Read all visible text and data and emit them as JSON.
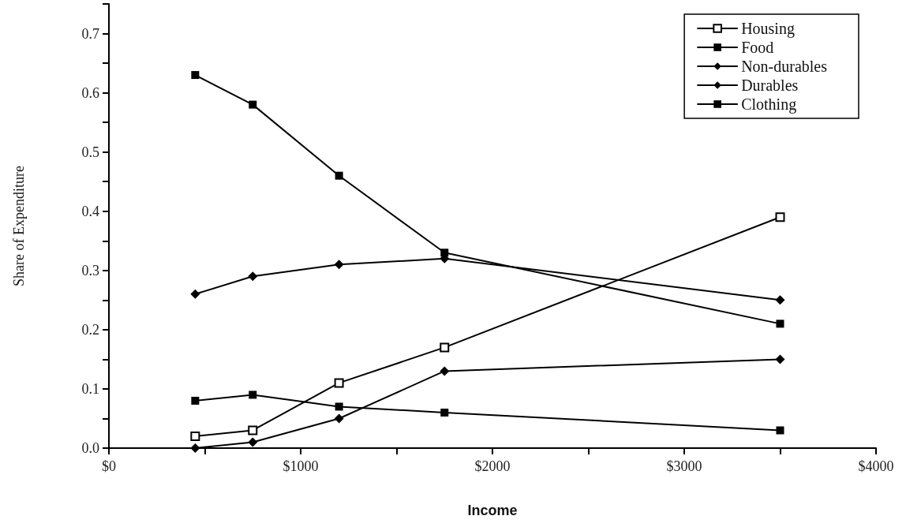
{
  "chart_data": {
    "type": "line",
    "xlabel": "Income",
    "ylabel": "Share of Expenditure",
    "x": [
      450,
      750,
      1200,
      1750,
      3500
    ],
    "series": [
      {
        "name": "Housing",
        "color": "#000000",
        "marker": "square",
        "colors": [
          "#ffffff",
          "#ffffff",
          "#ffffff",
          "#ffffff",
          "#ffffff"
        ],
        "values": [
          0.02,
          0.03,
          0.11,
          0.17,
          0.39
        ]
      },
      {
        "name": "Food",
        "color": "#000000",
        "marker": "square",
        "values": [
          0.63,
          0.58,
          0.46,
          0.33,
          0.21
        ]
      },
      {
        "name": "Non-durables",
        "color": "#000000",
        "marker": "diamond",
        "values": [
          0.26,
          0.29,
          0.31,
          0.32,
          0.25
        ]
      },
      {
        "name": "Durables",
        "color": "#000000",
        "marker": "diamond",
        "values": [
          0.0,
          0.01,
          0.05,
          0.13,
          0.15
        ]
      },
      {
        "name": "Clothing",
        "color": "#000000",
        "marker": "square",
        "values": [
          0.08,
          0.09,
          0.07,
          0.06,
          0.03
        ]
      }
    ],
    "xlim": [
      0,
      4000
    ],
    "xticks": [
      {
        "value": 0,
        "label": "$0"
      },
      {
        "value": 500,
        "label": null
      },
      {
        "value": 1000,
        "label": "$1000"
      },
      {
        "value": 1500,
        "label": null
      },
      {
        "value": 2000,
        "label": "$2000"
      },
      {
        "value": 2500,
        "label": null
      },
      {
        "value": 3000,
        "label": "$3000"
      },
      {
        "value": 3500,
        "label": null
      },
      {
        "value": 4000,
        "label": "$4000"
      }
    ],
    "ylim": [
      0,
      0.75
    ],
    "yticks": [
      {
        "value": 0,
        "label": "0.0"
      },
      {
        "value": 0.05,
        "label": null
      },
      0.1,
      {
        "value": 0.15,
        "label": null
      },
      0.2,
      {
        "value": 0.25,
        "label": null
      },
      0.3,
      {
        "value": 0.35,
        "label": null
      },
      0.4,
      {
        "value": 0.45,
        "label": null
      },
      0.5,
      {
        "value": 0.55,
        "label": null
      },
      0.6,
      {
        "value": 0.65,
        "label": null
      },
      0.7,
      {
        "value": 0.75,
        "label": null
      }
    ],
    "grid": false,
    "legend": "top right",
    "line_style": "solid"
  }
}
